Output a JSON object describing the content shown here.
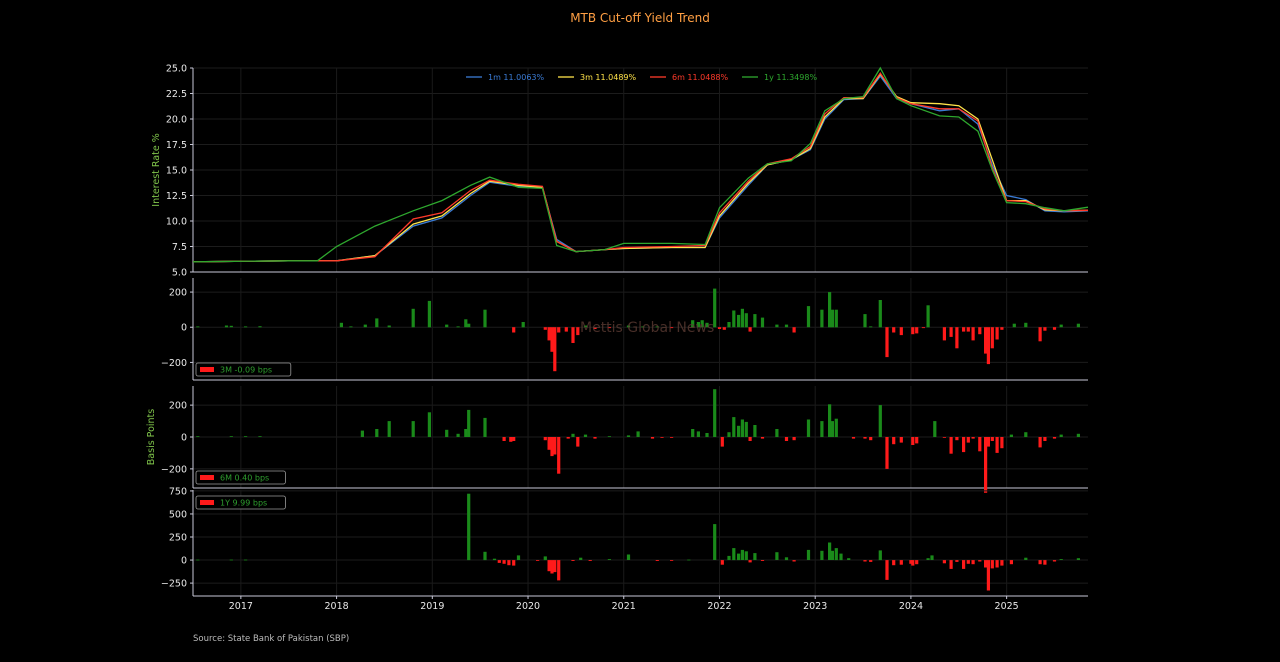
{
  "title": "MTB Cut-off Yield Trend",
  "source": "Source: State Bank of Pakistan (SBP)",
  "watermark": "Mettis Global News",
  "colors": {
    "title": "#ff9f43",
    "axis": "#c8c8d8",
    "tick_text": "#e8e8e8",
    "ylabel": "#7fc34a",
    "source": "#bbbbbb",
    "positive": "#1a8a1a",
    "negative": "#ff1a1a",
    "legend_text": "#2e9e2e"
  },
  "chart_data": [
    {
      "type": "line",
      "ylabel": "Interest Rate %",
      "ylim": [
        5,
        25
      ],
      "yticks": [
        5.0,
        7.5,
        10.0,
        12.5,
        15.0,
        17.5,
        20.0,
        22.5,
        25.0
      ],
      "xlim": [
        2016.5,
        2025.85
      ],
      "legend_placement": "top-center",
      "series": [
        {
          "name": "1m 11.0063%",
          "color": "#3a7bd5",
          "x": [
            2016.5,
            2017.5,
            2017.8,
            2018.0,
            2018.4,
            2018.8,
            2019.1,
            2019.4,
            2019.6,
            2019.9,
            2020.15,
            2020.3,
            2020.5,
            2020.8,
            2021.0,
            2021.5,
            2021.85,
            2022.0,
            2022.3,
            2022.5,
            2022.75,
            2022.95,
            2023.1,
            2023.3,
            2023.5,
            2023.68,
            2023.85,
            2024.0,
            2024.3,
            2024.5,
            2024.7,
            2024.85,
            2025.0,
            2025.2,
            2025.4,
            2025.6,
            2025.85
          ],
          "y": [
            6.0,
            6.1,
            6.1,
            6.1,
            6.6,
            9.5,
            10.3,
            12.5,
            13.8,
            13.4,
            13.3,
            8.2,
            7.0,
            7.2,
            7.3,
            7.4,
            7.4,
            10.3,
            13.5,
            15.5,
            16.0,
            17.0,
            20.0,
            21.9,
            22.0,
            24.2,
            22.0,
            21.5,
            20.8,
            21.0,
            19.5,
            15.5,
            12.5,
            12.1,
            11.0,
            10.9,
            11.0
          ]
        },
        {
          "name": "3m 11.0489%",
          "color": "#ffe34a",
          "x": [
            2016.5,
            2017.5,
            2017.8,
            2018.0,
            2018.4,
            2018.8,
            2019.1,
            2019.4,
            2019.6,
            2019.9,
            2020.15,
            2020.3,
            2020.5,
            2020.8,
            2021.0,
            2021.5,
            2021.85,
            2022.0,
            2022.3,
            2022.5,
            2022.75,
            2022.95,
            2023.1,
            2023.3,
            2023.5,
            2023.68,
            2023.85,
            2024.0,
            2024.3,
            2024.5,
            2024.7,
            2024.85,
            2025.0,
            2025.2,
            2025.4,
            2025.6,
            2025.85
          ],
          "y": [
            6.0,
            6.1,
            6.1,
            6.1,
            6.6,
            9.7,
            10.5,
            12.7,
            13.9,
            13.5,
            13.3,
            8.0,
            7.0,
            7.2,
            7.3,
            7.4,
            7.4,
            10.5,
            13.7,
            15.5,
            16.0,
            17.1,
            20.2,
            22.0,
            22.0,
            24.4,
            22.2,
            21.6,
            21.5,
            21.3,
            20.0,
            16.0,
            12.0,
            12.0,
            11.1,
            11.0,
            11.05
          ]
        },
        {
          "name": "6m 11.0488%",
          "color": "#ff3a2a",
          "x": [
            2016.5,
            2017.5,
            2017.8,
            2018.0,
            2018.4,
            2018.8,
            2019.1,
            2019.4,
            2019.6,
            2019.9,
            2020.15,
            2020.3,
            2020.5,
            2020.8,
            2021.0,
            2021.5,
            2021.85,
            2022.0,
            2022.3,
            2022.5,
            2022.75,
            2022.95,
            2023.1,
            2023.3,
            2023.5,
            2023.68,
            2023.85,
            2024.0,
            2024.3,
            2024.5,
            2024.7,
            2024.85,
            2025.0,
            2025.2,
            2025.4,
            2025.6,
            2025.85
          ],
          "y": [
            6.0,
            6.1,
            6.1,
            6.1,
            6.5,
            10.2,
            10.8,
            13.0,
            14.0,
            13.6,
            13.4,
            8.0,
            7.0,
            7.2,
            7.4,
            7.5,
            7.6,
            10.8,
            13.9,
            15.6,
            16.1,
            17.3,
            20.5,
            22.1,
            22.1,
            24.5,
            22.1,
            21.5,
            21.0,
            21.0,
            19.8,
            15.2,
            12.0,
            11.9,
            11.2,
            11.0,
            11.05
          ]
        },
        {
          "name": "1y 11.3498%",
          "color": "#2ea82e",
          "x": [
            2016.5,
            2017.5,
            2017.8,
            2018.0,
            2018.4,
            2018.8,
            2019.1,
            2019.4,
            2019.6,
            2019.9,
            2020.15,
            2020.3,
            2020.5,
            2020.8,
            2021.0,
            2021.5,
            2021.85,
            2022.0,
            2022.3,
            2022.5,
            2022.75,
            2022.95,
            2023.1,
            2023.3,
            2023.5,
            2023.68,
            2023.85,
            2024.0,
            2024.3,
            2024.5,
            2024.7,
            2024.85,
            2025.0,
            2025.2,
            2025.4,
            2025.6,
            2025.85
          ],
          "y": [
            6.0,
            6.1,
            6.1,
            7.5,
            9.5,
            11.0,
            12.0,
            13.5,
            14.3,
            13.3,
            13.2,
            7.6,
            7.0,
            7.2,
            7.8,
            7.8,
            7.7,
            11.3,
            14.2,
            15.6,
            15.9,
            17.6,
            20.8,
            22.0,
            22.2,
            25.0,
            22.0,
            21.3,
            20.3,
            20.2,
            18.8,
            15.0,
            11.8,
            11.7,
            11.3,
            11.0,
            11.35
          ]
        }
      ]
    },
    {
      "type": "bar",
      "ylim": [
        -300,
        280
      ],
      "yticks": [
        -200,
        0,
        200
      ],
      "legend": "3M -0.09 bps",
      "legend_placement": "bottom-left",
      "x": [
        2016.55,
        2016.85,
        2016.9,
        2017.05,
        2017.2,
        2018.05,
        2018.15,
        2018.3,
        2018.42,
        2018.55,
        2018.8,
        2018.97,
        2019.15,
        2019.27,
        2019.35,
        2019.38,
        2019.55,
        2019.85,
        2019.95,
        2020.18,
        2020.22,
        2020.25,
        2020.28,
        2020.32,
        2020.4,
        2020.47,
        2020.52,
        2020.6,
        2020.7,
        2020.85,
        2021.05,
        2021.2,
        2021.35,
        2021.5,
        2021.72,
        2021.78,
        2021.82,
        2021.87,
        2021.95,
        2022.0,
        2022.05,
        2022.1,
        2022.15,
        2022.2,
        2022.24,
        2022.28,
        2022.32,
        2022.37,
        2022.45,
        2022.6,
        2022.7,
        2022.78,
        2022.93,
        2023.07,
        2023.15,
        2023.18,
        2023.22,
        2023.52,
        2023.58,
        2023.68,
        2023.75,
        2023.82,
        2023.9,
        2024.02,
        2024.06,
        2024.13,
        2024.18,
        2024.35,
        2024.42,
        2024.48,
        2024.55,
        2024.6,
        2024.65,
        2024.72,
        2024.78,
        2024.81,
        2024.85,
        2024.9,
        2024.95,
        2025.08,
        2025.2,
        2025.35,
        2025.4,
        2025.5,
        2025.57,
        2025.75
      ],
      "values": [
        5,
        10,
        8,
        5,
        6,
        25,
        5,
        15,
        50,
        10,
        105,
        150,
        15,
        5,
        45,
        20,
        100,
        -30,
        30,
        -15,
        -75,
        -140,
        -250,
        -30,
        -25,
        -90,
        -45,
        10,
        -10,
        -5,
        10,
        5,
        5,
        -5,
        40,
        30,
        40,
        25,
        220,
        -10,
        -15,
        30,
        95,
        70,
        105,
        80,
        -25,
        75,
        55,
        15,
        15,
        -30,
        120,
        100,
        200,
        100,
        100,
        75,
        5,
        155,
        -170,
        -30,
        -45,
        -40,
        -35,
        -5,
        125,
        -75,
        -55,
        -120,
        -25,
        -25,
        -75,
        -40,
        -150,
        -210,
        -120,
        -70,
        -15,
        20,
        25,
        -80,
        -20,
        -15,
        15,
        20
      ]
    },
    {
      "type": "bar",
      "ylabel": "Basis Points",
      "ylim": [
        -320,
        320
      ],
      "yticks": [
        -200,
        0,
        200
      ],
      "legend": "6M 0.40 bps",
      "legend_placement": "bottom-left",
      "x": [
        2016.55,
        2016.9,
        2017.05,
        2017.2,
        2018.27,
        2018.42,
        2018.55,
        2018.8,
        2018.97,
        2019.15,
        2019.27,
        2019.35,
        2019.38,
        2019.55,
        2019.75,
        2019.82,
        2019.85,
        2020.18,
        2020.22,
        2020.25,
        2020.28,
        2020.32,
        2020.42,
        2020.47,
        2020.52,
        2020.6,
        2020.7,
        2020.85,
        2021.05,
        2021.15,
        2021.3,
        2021.4,
        2021.5,
        2021.72,
        2021.78,
        2021.87,
        2021.95,
        2022.03,
        2022.1,
        2022.15,
        2022.2,
        2022.24,
        2022.28,
        2022.32,
        2022.37,
        2022.45,
        2022.6,
        2022.7,
        2022.78,
        2022.93,
        2023.07,
        2023.15,
        2023.18,
        2023.22,
        2023.4,
        2023.52,
        2023.58,
        2023.68,
        2023.75,
        2023.82,
        2023.9,
        2024.02,
        2024.06,
        2024.25,
        2024.35,
        2024.42,
        2024.48,
        2024.55,
        2024.6,
        2024.65,
        2024.72,
        2024.78,
        2024.81,
        2024.85,
        2024.9,
        2024.95,
        2025.05,
        2025.2,
        2025.35,
        2025.4,
        2025.5,
        2025.57,
        2025.75
      ],
      "values": [
        5,
        5,
        5,
        5,
        40,
        50,
        100,
        100,
        155,
        45,
        20,
        50,
        170,
        120,
        -25,
        -30,
        -25,
        -20,
        -80,
        -120,
        -110,
        -230,
        -10,
        20,
        -60,
        15,
        -10,
        5,
        10,
        35,
        -10,
        -5,
        -5,
        50,
        35,
        25,
        300,
        -60,
        30,
        125,
        70,
        110,
        95,
        -25,
        75,
        -10,
        50,
        -25,
        -20,
        110,
        100,
        205,
        100,
        115,
        -10,
        -10,
        -20,
        200,
        -200,
        -45,
        -35,
        -50,
        -40,
        100,
        -5,
        -105,
        -20,
        -95,
        -35,
        -10,
        -90,
        -350,
        -60,
        -25,
        -100,
        -70,
        15,
        30,
        -65,
        -25,
        -10,
        15,
        20
      ]
    },
    {
      "type": "bar",
      "ylim": [
        -390,
        760
      ],
      "yticks": [
        -250,
        0,
        250,
        500,
        750
      ],
      "legend": "1Y 9.99 bps",
      "legend_placement": "top-left",
      "x": [
        2016.55,
        2016.9,
        2017.05,
        2019.38,
        2019.55,
        2019.65,
        2019.7,
        2019.75,
        2019.8,
        2019.85,
        2019.9,
        2020.1,
        2020.18,
        2020.22,
        2020.25,
        2020.28,
        2020.32,
        2020.47,
        2020.55,
        2020.65,
        2020.85,
        2021.05,
        2021.35,
        2021.5,
        2021.68,
        2021.95,
        2022.03,
        2022.1,
        2022.15,
        2022.2,
        2022.24,
        2022.28,
        2022.32,
        2022.37,
        2022.45,
        2022.6,
        2022.7,
        2022.78,
        2022.93,
        2023.07,
        2023.15,
        2023.18,
        2023.22,
        2023.27,
        2023.35,
        2023.52,
        2023.58,
        2023.68,
        2023.75,
        2023.82,
        2023.9,
        2024.0,
        2024.02,
        2024.06,
        2024.18,
        2024.22,
        2024.35,
        2024.42,
        2024.48,
        2024.55,
        2024.6,
        2024.65,
        2024.72,
        2024.78,
        2024.81,
        2024.85,
        2024.9,
        2024.95,
        2025.05,
        2025.2,
        2025.35,
        2025.4,
        2025.5,
        2025.57,
        2025.75
      ],
      "values": [
        5,
        5,
        5,
        720,
        90,
        15,
        -30,
        -40,
        -55,
        -60,
        50,
        -5,
        40,
        -120,
        -145,
        -130,
        -220,
        -10,
        25,
        -10,
        10,
        60,
        -10,
        -5,
        5,
        390,
        -50,
        45,
        130,
        70,
        110,
        95,
        -25,
        75,
        -10,
        85,
        30,
        -15,
        110,
        100,
        190,
        100,
        130,
        70,
        20,
        -15,
        -20,
        105,
        -215,
        -55,
        -50,
        -40,
        -60,
        -45,
        20,
        50,
        -35,
        -95,
        -20,
        -95,
        -40,
        -45,
        -15,
        -80,
        -330,
        -90,
        -80,
        -60,
        -45,
        25,
        -45,
        -50,
        -15,
        10,
        20
      ]
    }
  ],
  "xaxis": {
    "ticks": [
      2017,
      2018,
      2019,
      2020,
      2021,
      2022,
      2023,
      2024,
      2025
    ],
    "labels": [
      "2017",
      "2018",
      "2019",
      "2020",
      "2021",
      "2022",
      "2023",
      "2024",
      "2025"
    ]
  }
}
